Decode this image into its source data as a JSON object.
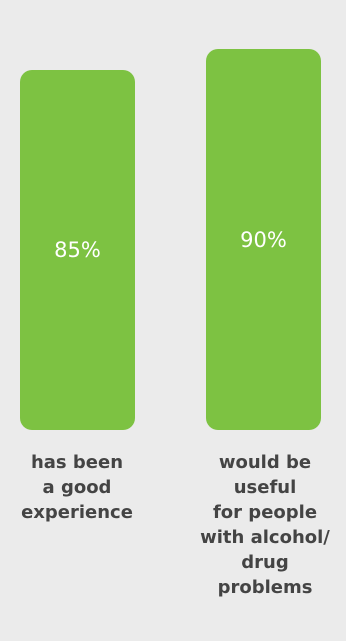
{
  "chart_data": {
    "type": "bar",
    "categories": [
      "has been\na good\nexperience",
      "would be\nuseful\nfor people\nwith alcohol/\ndrug\nproblems"
    ],
    "values": [
      85,
      90
    ],
    "value_labels": [
      "85%",
      "90%"
    ],
    "ylim": [
      0,
      100
    ],
    "grid": false,
    "colors": {
      "bar": "#7dc242",
      "value_text": "#ffffff",
      "category_text": "#444444",
      "background": "#ebebeb"
    }
  }
}
